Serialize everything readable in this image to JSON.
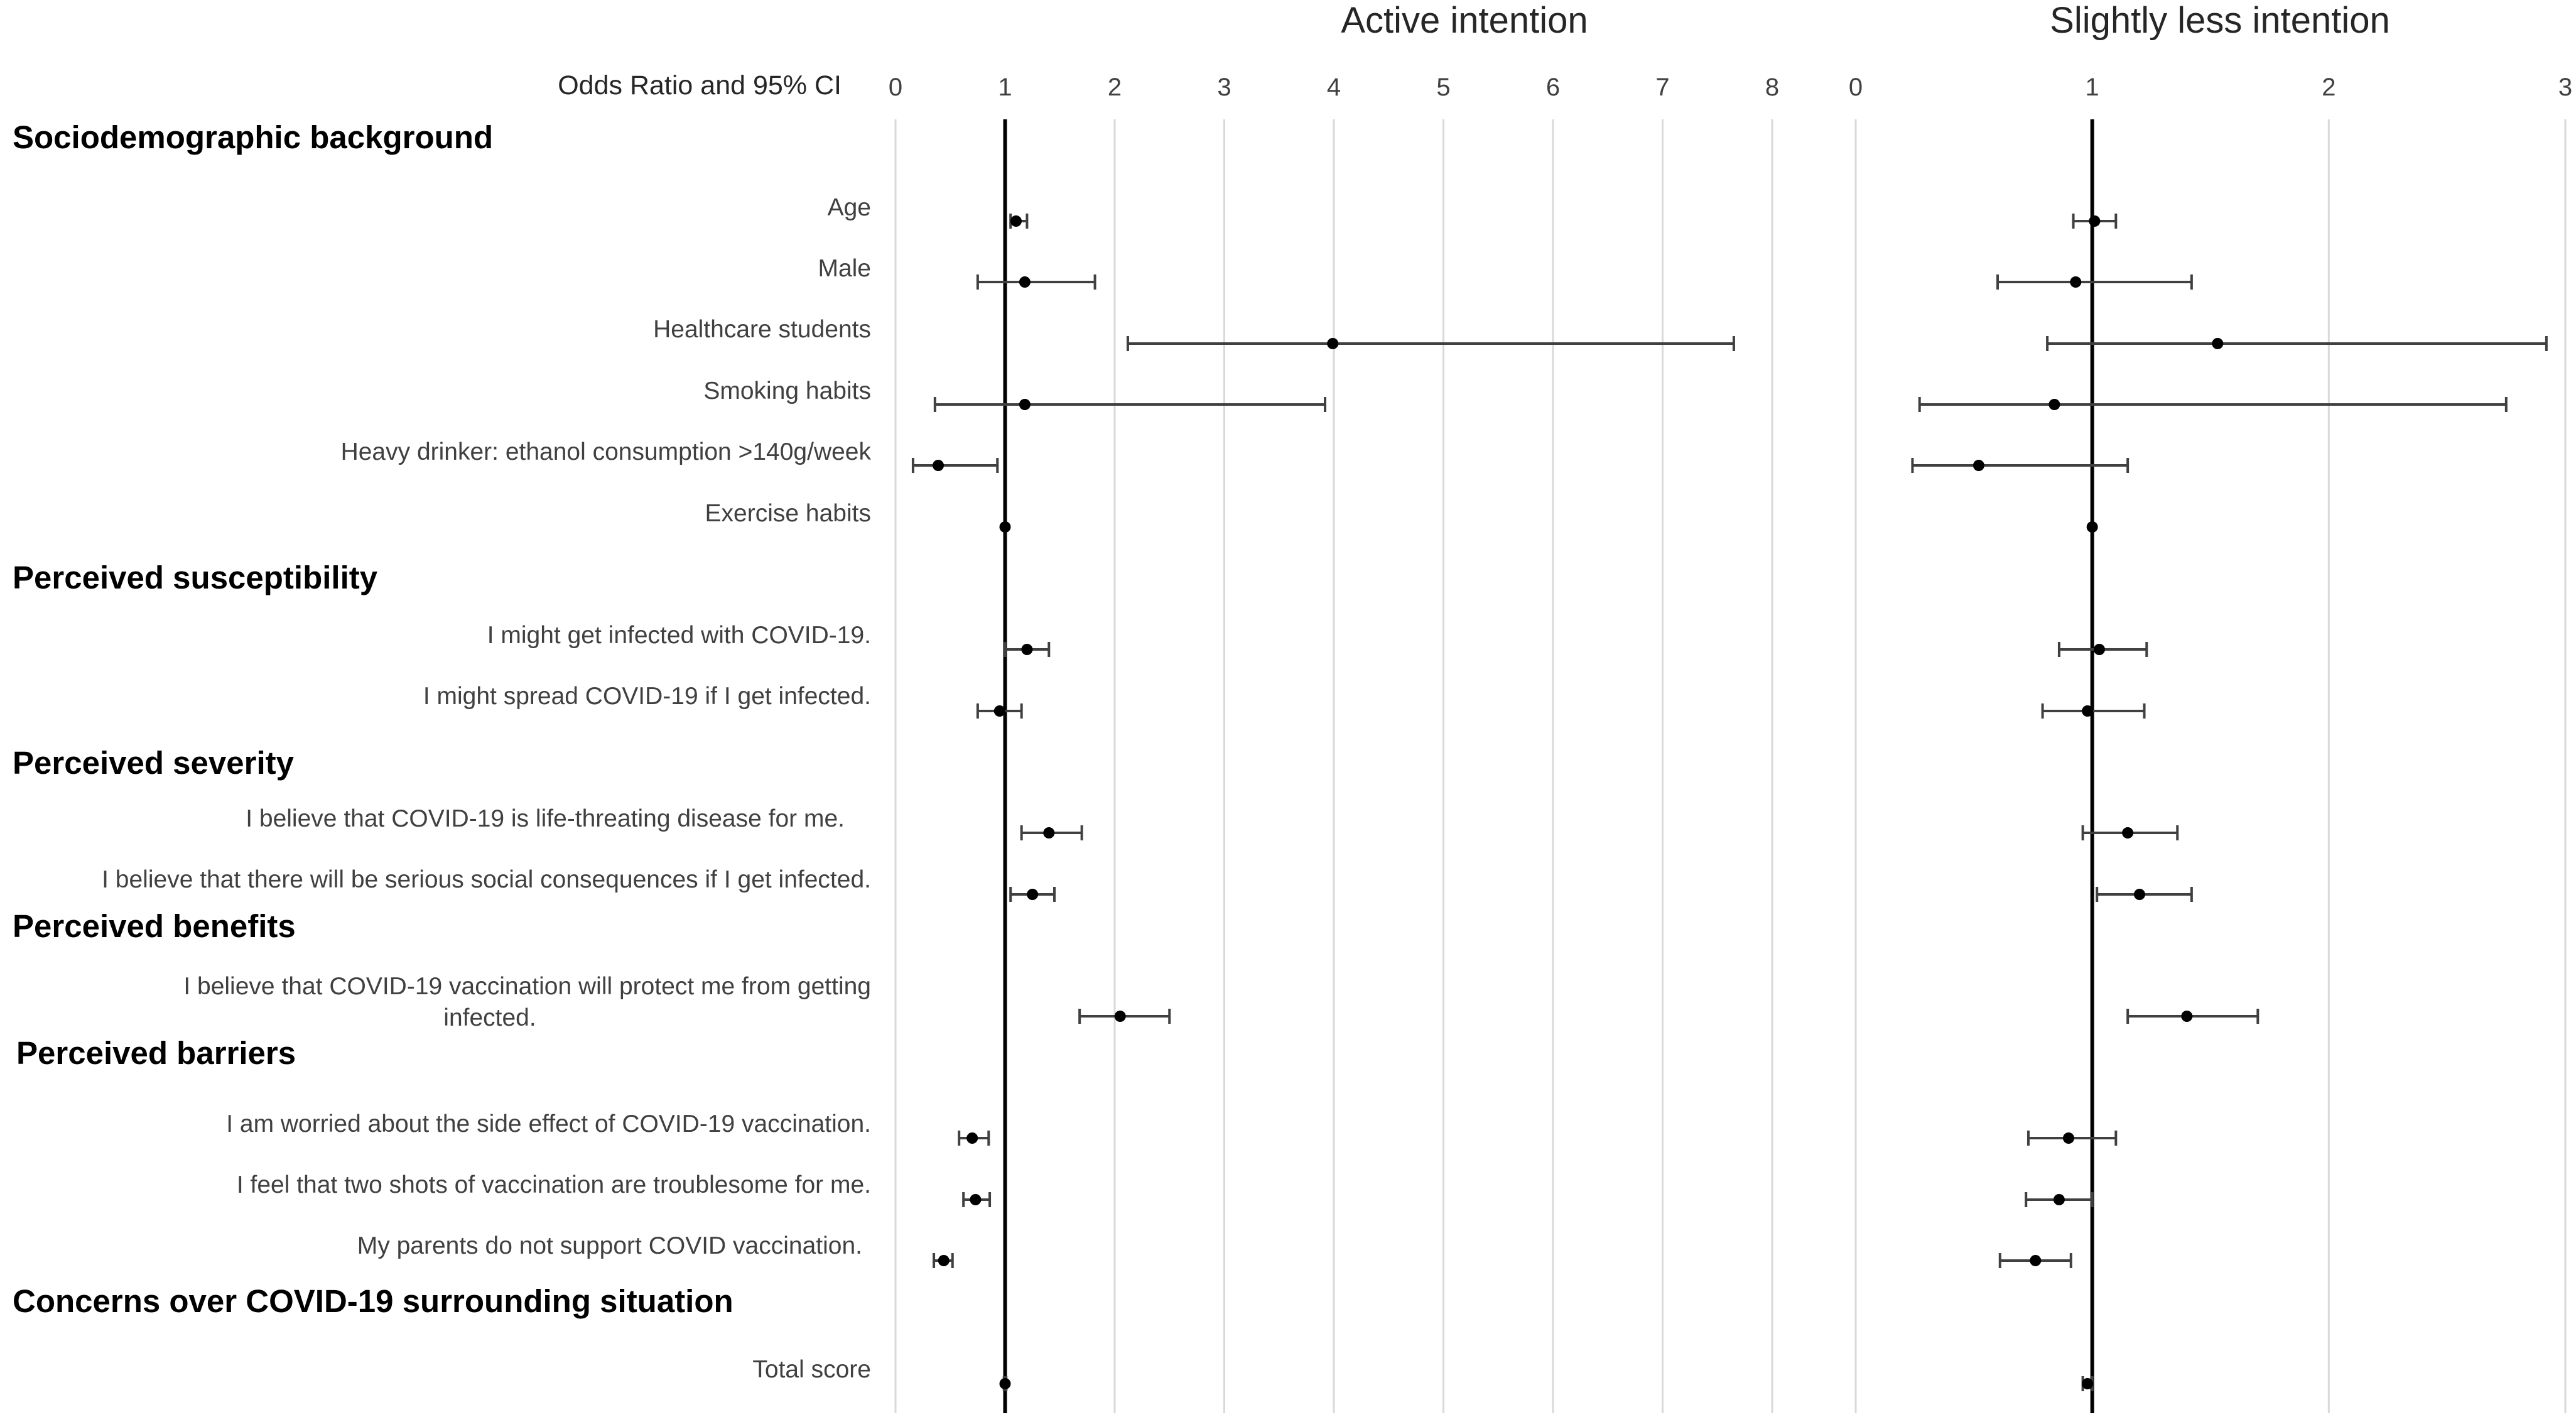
{
  "chart_data": {
    "type": "forest",
    "axis_title": "Odds Ratio and 95% CI",
    "sections": [
      {
        "title": "Sociodemographic background",
        "items": [
          0,
          1,
          2,
          3,
          4,
          5
        ]
      },
      {
        "title": "Perceived  susceptibility",
        "items": [
          6,
          7
        ]
      },
      {
        "title": "Perceived severity",
        "items": [
          8,
          9
        ]
      },
      {
        "title": "Perceived benefits",
        "items": [
          10
        ]
      },
      {
        "title": "Perceived barriers",
        "items": [
          11,
          12,
          13
        ]
      },
      {
        "title": "Concerns over COVID-19 surrounding situation",
        "items": [
          14
        ]
      }
    ],
    "rows": [
      {
        "label": [
          "Age"
        ]
      },
      {
        "label": [
          "Male"
        ]
      },
      {
        "label": [
          "Healthcare students"
        ]
      },
      {
        "label": [
          "Smoking habits"
        ]
      },
      {
        "label": [
          "Heavy drinker: ethanol consumption >140g/week"
        ]
      },
      {
        "label": [
          "Exercise habits"
        ]
      },
      {
        "label": [
          "I might get infected with COVID-19."
        ]
      },
      {
        "label": [
          "I might spread COVID-19 if I get infected."
        ]
      },
      {
        "label": [
          "I believe that COVID-19 is life-threating disease for me."
        ]
      },
      {
        "label": [
          "I believe that there will be serious social consequences if I get infected."
        ]
      },
      {
        "label": [
          "I believe that COVID-19 vaccination will protect me from getting",
          "infected."
        ]
      },
      {
        "label": [
          "I am worried about the side effect of COVID-19 vaccination."
        ]
      },
      {
        "label": [
          "I feel that two shots of vaccination are troublesome for me."
        ]
      },
      {
        "label": [
          "My parents do not support COVID vaccination."
        ]
      },
      {
        "label": [
          "Total score"
        ]
      }
    ],
    "panels": [
      {
        "title": "Active intention",
        "xlim": [
          0,
          8
        ],
        "ticks": [
          "0",
          "1",
          "2",
          "3",
          "4",
          "5",
          "6",
          "7",
          "8"
        ],
        "ref": 1,
        "series": [
          {
            "or": 1.1,
            "lo": 1.05,
            "hi": 1.2
          },
          {
            "or": 1.18,
            "lo": 0.75,
            "hi": 1.82
          },
          {
            "or": 3.99,
            "lo": 2.12,
            "hi": 7.65
          },
          {
            "or": 1.18,
            "lo": 0.36,
            "hi": 3.92
          },
          {
            "or": 0.39,
            "lo": 0.16,
            "hi": 0.93
          },
          {
            "or": 1.0,
            "lo": 1.0,
            "hi": 1.0
          },
          {
            "or": 1.2,
            "lo": 1.0,
            "hi": 1.4
          },
          {
            "or": 0.95,
            "lo": 0.75,
            "hi": 1.15
          },
          {
            "or": 1.4,
            "lo": 1.15,
            "hi": 1.7
          },
          {
            "or": 1.25,
            "lo": 1.05,
            "hi": 1.45
          },
          {
            "or": 2.05,
            "lo": 1.68,
            "hi": 2.5
          },
          {
            "or": 0.7,
            "lo": 0.58,
            "hi": 0.85
          },
          {
            "or": 0.73,
            "lo": 0.62,
            "hi": 0.86
          },
          {
            "or": 0.44,
            "lo": 0.35,
            "hi": 0.52
          },
          {
            "or": 1.0,
            "lo": 0.99,
            "hi": 1.01
          }
        ]
      },
      {
        "title": "Slightly less intention",
        "xlim": [
          0,
          3
        ],
        "ticks": [
          "0",
          "1",
          "2",
          "3"
        ],
        "ref": 1,
        "series": [
          {
            "or": 1.01,
            "lo": 0.92,
            "hi": 1.1
          },
          {
            "or": 0.93,
            "lo": 0.6,
            "hi": 1.42
          },
          {
            "or": 1.53,
            "lo": 0.81,
            "hi": 2.92
          },
          {
            "or": 0.84,
            "lo": 0.27,
            "hi": 2.75
          },
          {
            "or": 0.52,
            "lo": 0.24,
            "hi": 1.15
          },
          {
            "or": 1.0,
            "lo": 1.0,
            "hi": 1.0
          },
          {
            "or": 1.03,
            "lo": 0.86,
            "hi": 1.23
          },
          {
            "or": 0.98,
            "lo": 0.79,
            "hi": 1.22
          },
          {
            "or": 1.15,
            "lo": 0.96,
            "hi": 1.36
          },
          {
            "or": 1.2,
            "lo": 1.02,
            "hi": 1.42
          },
          {
            "or": 1.4,
            "lo": 1.15,
            "hi": 1.7
          },
          {
            "or": 0.9,
            "lo": 0.73,
            "hi": 1.1
          },
          {
            "or": 0.86,
            "lo": 0.72,
            "hi": 1.0
          },
          {
            "or": 0.76,
            "lo": 0.61,
            "hi": 0.91
          },
          {
            "or": 0.98,
            "lo": 0.96,
            "hi": 1.0
          }
        ]
      }
    ]
  }
}
